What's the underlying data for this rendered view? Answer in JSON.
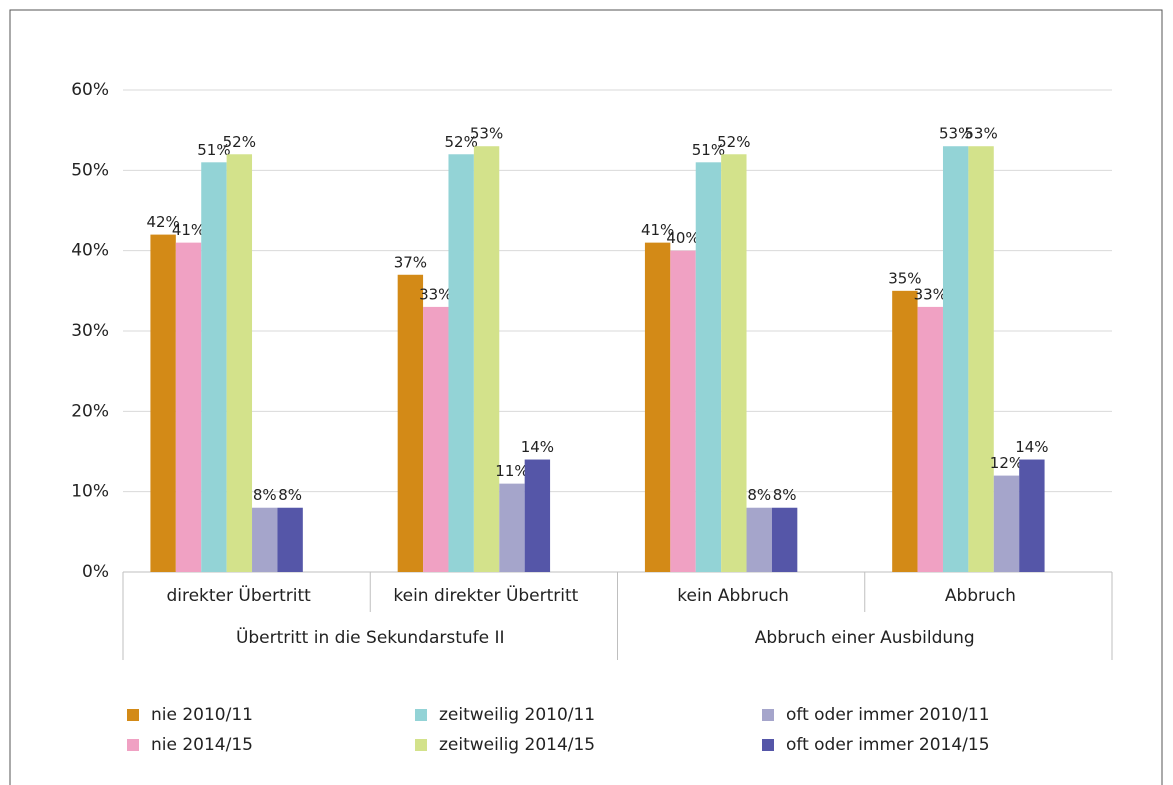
{
  "chart_data": {
    "type": "bar",
    "categories": [
      "direkter Übertritt",
      "kein direkter Übertritt",
      "kein Abbruch",
      "Abbruch"
    ],
    "groups": [
      "Übertritt in die Sekundarstufe II",
      "Abbruch einer Ausbildung"
    ],
    "series": [
      {
        "name": "nie 2010/11",
        "color": "#d38a17",
        "values": [
          42,
          37,
          41,
          35
        ],
        "value_labels": [
          "42%",
          "37%",
          "41%",
          "35%"
        ]
      },
      {
        "name": "nie 2014/15",
        "color": "#f0a1c3",
        "values": [
          41,
          33,
          40,
          33
        ],
        "value_labels": [
          "41%",
          "33%",
          "40%",
          "33%"
        ]
      },
      {
        "name": "zeitweilig 2010/11",
        "color": "#93d3d6",
        "values": [
          51,
          52,
          51,
          53
        ],
        "value_labels": [
          "51%",
          "52%",
          "51%",
          "53%"
        ]
      },
      {
        "name": "zeitweilig 2014/15",
        "color": "#d3e28b",
        "values": [
          52,
          53,
          52,
          53
        ],
        "value_labels": [
          "52%",
          "53%",
          "52%",
          "53%"
        ]
      },
      {
        "name": "oft oder immer 2010/11",
        "color": "#a5a5cb",
        "values": [
          8,
          11,
          8,
          12
        ],
        "value_labels": [
          "8%",
          "11%",
          "8%",
          "12%"
        ]
      },
      {
        "name": "oft oder immer 2014/15",
        "color": "#5556a8",
        "values": [
          8,
          14,
          8,
          14
        ],
        "value_labels": [
          "8%",
          "14%",
          "8%",
          "14%"
        ]
      }
    ],
    "ylim": [
      0,
      60
    ],
    "yticks": [
      {
        "value": 0,
        "label": "0%"
      },
      {
        "value": 10,
        "label": "10%"
      },
      {
        "value": 20,
        "label": "20%"
      },
      {
        "value": 30,
        "label": "30%"
      },
      {
        "value": 40,
        "label": "40%"
      },
      {
        "value": 50,
        "label": "50%"
      },
      {
        "value": 60,
        "label": "60%"
      }
    ],
    "grid": true,
    "legend": "bottom"
  }
}
